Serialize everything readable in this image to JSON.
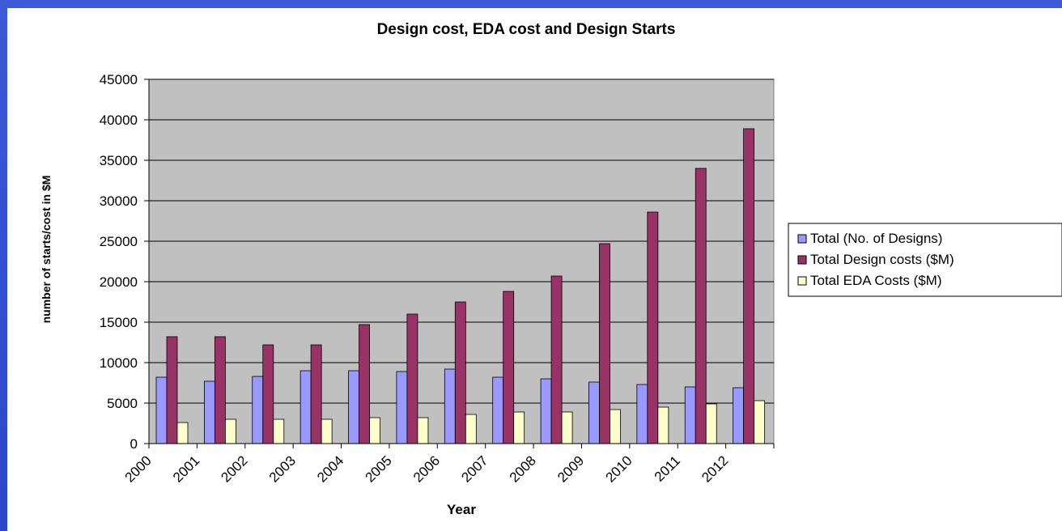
{
  "chart_data": {
    "type": "bar",
    "title": "Design cost, EDA cost and Design Starts",
    "xlabel": "Year",
    "ylabel": "number of starts/cost in $M",
    "categories": [
      "2000",
      "2001",
      "2002",
      "2003",
      "2004",
      "2005",
      "2006",
      "2007",
      "2008",
      "2009",
      "2010",
      "2011",
      "2012"
    ],
    "ylim": [
      0,
      45000
    ],
    "yticks": [
      0,
      5000,
      10000,
      15000,
      20000,
      25000,
      30000,
      35000,
      40000,
      45000
    ],
    "grid": true,
    "legend_position": "right",
    "series": [
      {
        "name": "Total (No. of Designs)",
        "color": "#9999ff",
        "values": [
          8200,
          7700,
          8300,
          9000,
          9000,
          8900,
          9200,
          8200,
          8000,
          7600,
          7300,
          7000,
          6900
        ]
      },
      {
        "name": "Total Design costs ($M)",
        "color": "#993366",
        "values": [
          13200,
          13200,
          12200,
          12200,
          14700,
          16000,
          17500,
          18800,
          20700,
          24700,
          28600,
          34000,
          38900
        ]
      },
      {
        "name": "Total EDA Costs ($M)",
        "color": "#ffffcc",
        "values": [
          2600,
          3000,
          3000,
          3000,
          3200,
          3200,
          3600,
          3900,
          3900,
          4200,
          4500,
          4900,
          5300
        ]
      }
    ]
  }
}
